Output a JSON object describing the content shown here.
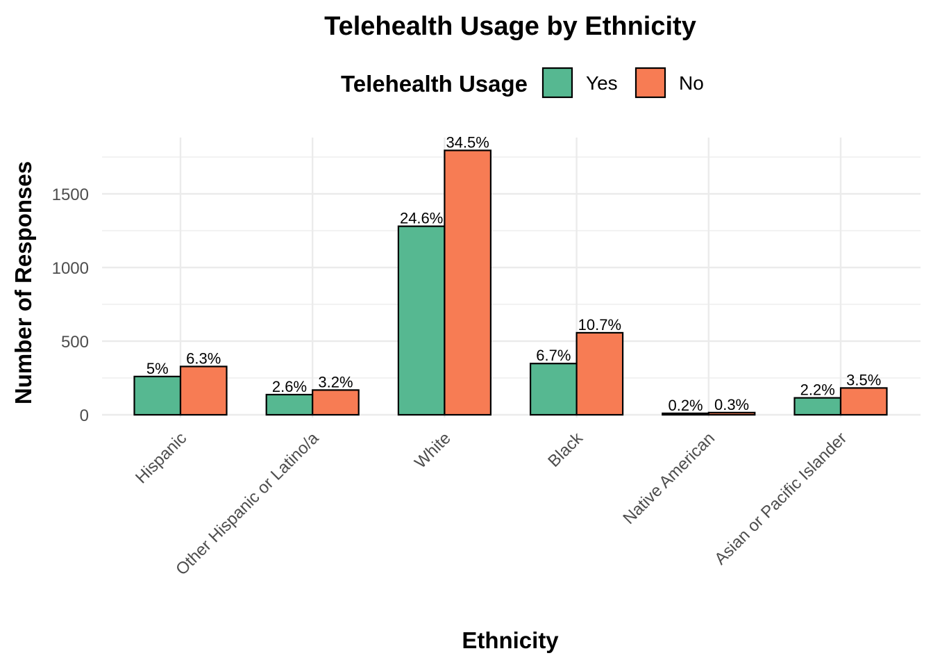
{
  "chart_data": {
    "type": "bar",
    "title": "Telehealth Usage by Ethnicity",
    "xlabel": "Ethnicity",
    "ylabel": "Number of Responses",
    "legend": {
      "title": "Telehealth Usage",
      "position": "top"
    },
    "categories": [
      "Hispanic",
      "Other Hispanic or Latino/a",
      "White",
      "Black",
      "Native American",
      "Asian or Pacific Islander"
    ],
    "series": [
      {
        "name": "Yes",
        "color": "#56b891",
        "values": [
          260,
          137,
          1280,
          348,
          10,
          115
        ],
        "labels": [
          "5%",
          "2.6%",
          "24.6%",
          "6.7%",
          "0.2%",
          "2.2%"
        ]
      },
      {
        "name": "No",
        "color": "#f77c54",
        "values": [
          328,
          168,
          1795,
          557,
          15,
          182
        ],
        "labels": [
          "6.3%",
          "3.2%",
          "34.5%",
          "10.7%",
          "0.3%",
          "3.5%"
        ]
      }
    ],
    "yticks": [
      "0",
      "500",
      "1000",
      "1500"
    ],
    "ylim": [
      0,
      1870
    ],
    "grid": true
  }
}
